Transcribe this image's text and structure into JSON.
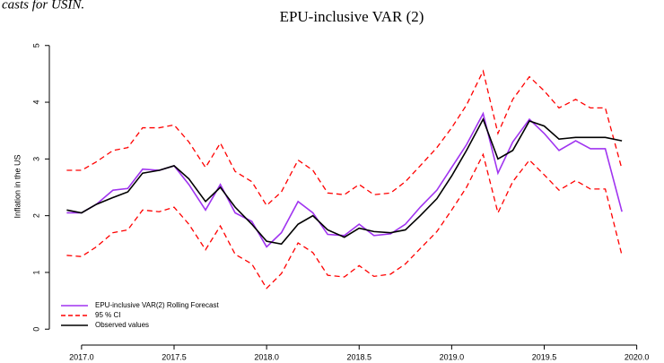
{
  "caption": "casts for USIN.",
  "chart_data": {
    "type": "line",
    "title": "EPU-inclusive VAR (2)",
    "y_label": "Inflation in the US",
    "x": [
      2016.92,
      2017.0,
      2017.08,
      2017.17,
      2017.25,
      2017.33,
      2017.42,
      2017.5,
      2017.58,
      2017.67,
      2017.75,
      2017.83,
      2017.92,
      2018.0,
      2018.08,
      2018.17,
      2018.25,
      2018.33,
      2018.42,
      2018.5,
      2018.58,
      2018.67,
      2018.75,
      2018.83,
      2018.92,
      2019.0,
      2019.08,
      2019.17,
      2019.25,
      2019.33,
      2019.42,
      2019.5,
      2019.58,
      2019.67,
      2019.75,
      2019.83,
      2019.92
    ],
    "series": [
      {
        "name": "EPU-inclusive VAR(2) Rolling Forecast",
        "color": "#a034f0",
        "dash": false,
        "values": [
          2.05,
          2.05,
          2.2,
          2.45,
          2.48,
          2.82,
          2.8,
          2.88,
          2.55,
          2.1,
          2.55,
          2.05,
          1.9,
          1.45,
          1.7,
          2.25,
          2.05,
          1.67,
          1.65,
          1.85,
          1.65,
          1.68,
          1.85,
          2.15,
          2.45,
          2.85,
          3.25,
          3.8,
          2.75,
          3.3,
          3.7,
          3.45,
          3.15,
          3.32,
          3.18,
          3.18,
          2.07
        ]
      },
      {
        "name": "95 % CI",
        "color": "#ff0000",
        "dash": true,
        "upper": [
          2.8,
          2.8,
          2.95,
          3.15,
          3.2,
          3.55,
          3.55,
          3.6,
          3.3,
          2.85,
          3.28,
          2.78,
          2.6,
          2.18,
          2.42,
          2.98,
          2.8,
          2.4,
          2.37,
          2.55,
          2.37,
          2.4,
          2.6,
          2.88,
          3.2,
          3.55,
          3.95,
          4.55,
          3.45,
          4.05,
          4.45,
          4.2,
          3.9,
          4.05,
          3.9,
          3.9,
          2.82
        ],
        "lower": [
          1.3,
          1.28,
          1.45,
          1.7,
          1.75,
          2.1,
          2.07,
          2.15,
          1.85,
          1.4,
          1.82,
          1.32,
          1.15,
          0.72,
          0.98,
          1.52,
          1.35,
          0.95,
          0.92,
          1.12,
          0.93,
          0.97,
          1.15,
          1.42,
          1.72,
          2.1,
          2.5,
          3.08,
          2.05,
          2.6,
          2.98,
          2.72,
          2.45,
          2.62,
          2.47,
          2.47,
          1.3
        ]
      },
      {
        "name": "Observed values",
        "color": "#000000",
        "dash": false,
        "values": [
          2.1,
          2.05,
          2.2,
          2.32,
          2.42,
          2.75,
          2.8,
          2.88,
          2.65,
          2.25,
          2.5,
          2.15,
          1.85,
          1.55,
          1.5,
          1.85,
          2.0,
          1.75,
          1.62,
          1.78,
          1.72,
          1.7,
          1.75,
          2.0,
          2.3,
          2.7,
          3.15,
          3.7,
          3.0,
          3.15,
          3.67,
          3.58,
          3.35,
          3.38,
          3.38,
          3.38,
          3.32
        ]
      }
    ],
    "xlim": [
      2016.86,
      2020.06
    ],
    "xticks": [
      {
        "value": 2017,
        "label": "2017.0"
      },
      {
        "value": 2017.5,
        "label": "2017.5"
      },
      {
        "value": 2018,
        "label": "2018.0"
      },
      {
        "value": 2018.5,
        "label": "2018.5"
      },
      {
        "value": 2019,
        "label": "2019.0"
      },
      {
        "value": 2019.5,
        "label": "2019.5"
      },
      {
        "value": 2020,
        "label": "2020.0"
      }
    ],
    "ylim": [
      -0.17,
      5.17
    ],
    "yticks": [
      0,
      1,
      2,
      3,
      4,
      5
    ],
    "legend": "bottom-left"
  }
}
